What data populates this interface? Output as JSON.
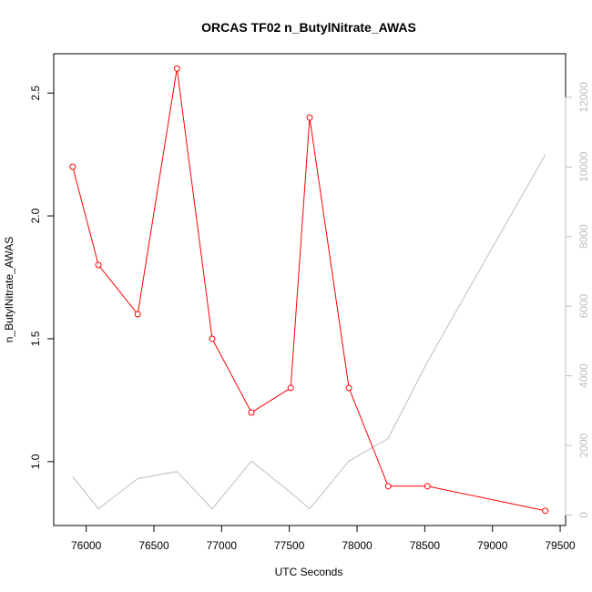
{
  "chart_data": {
    "type": "line",
    "title": "ORCAS TF02 n_ButylNitrate_AWAS",
    "xlabel": "UTC Seconds",
    "ylabel": "n_ButylNitrate_AWAS",
    "xlim": [
      75760,
      79540
    ],
    "ylim": [
      0.74,
      2.66
    ],
    "y2lim": [
      -300,
      13250
    ],
    "x_ticks": [
      76000,
      76500,
      77000,
      77500,
      78000,
      78500,
      79000,
      79500
    ],
    "y_ticks": [
      1.0,
      1.5,
      2.0,
      2.5
    ],
    "y2_ticks": [
      0,
      2000,
      4000,
      6000,
      8000,
      10000,
      12000
    ],
    "grid": false,
    "legend": "none",
    "colors": {
      "primary": "#ff0000",
      "secondary": "#bebebe"
    },
    "series": [
      {
        "axis": "left",
        "style": "line+points",
        "x": [
          75900,
          76090,
          76380,
          76670,
          76930,
          77220,
          77510,
          77650,
          77940,
          78230,
          78520,
          79390
        ],
        "values": [
          2.2,
          1.8,
          1.6,
          2.6,
          1.5,
          1.2,
          1.3,
          2.4,
          1.3,
          0.9,
          0.9,
          0.8
        ]
      },
      {
        "axis": "right",
        "style": "line",
        "x": [
          75900,
          76090,
          76380,
          76670,
          76930,
          77220,
          77510,
          77650,
          77940,
          78230,
          78520,
          79390
        ],
        "values": [
          1100,
          180,
          1050,
          1250,
          180,
          1550,
          650,
          180,
          1550,
          2200,
          4400,
          10350
        ]
      }
    ]
  }
}
